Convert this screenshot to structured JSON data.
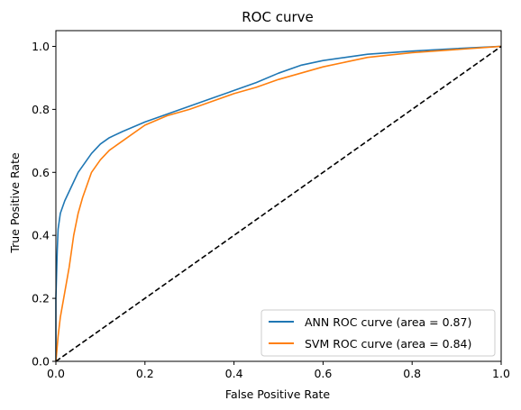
{
  "chart_data": {
    "type": "line",
    "title": "ROC curve",
    "xlabel": "False Positive Rate",
    "ylabel": "True Positive Rate",
    "xlim": [
      0.0,
      1.0
    ],
    "ylim": [
      0.0,
      1.05
    ],
    "xticks": [
      "0.0",
      "0.2",
      "0.4",
      "0.6",
      "0.8",
      "1.0"
    ],
    "yticks": [
      "0.0",
      "0.2",
      "0.4",
      "0.6",
      "0.8",
      "1.0"
    ],
    "grid": false,
    "legend_position": "lower-right",
    "series": [
      {
        "name": "ANN ROC curve (area = 0.87)",
        "color": "#1f77b4",
        "x": [
          0.0,
          0.0,
          0.003,
          0.005,
          0.01,
          0.02,
          0.03,
          0.04,
          0.05,
          0.06,
          0.07,
          0.08,
          0.1,
          0.12,
          0.15,
          0.2,
          0.25,
          0.3,
          0.35,
          0.4,
          0.45,
          0.5,
          0.55,
          0.6,
          0.65,
          0.7,
          0.8,
          0.9,
          1.0
        ],
        "y": [
          0.0,
          0.2,
          0.35,
          0.42,
          0.47,
          0.51,
          0.54,
          0.57,
          0.6,
          0.62,
          0.64,
          0.66,
          0.69,
          0.71,
          0.73,
          0.76,
          0.785,
          0.81,
          0.835,
          0.86,
          0.885,
          0.915,
          0.94,
          0.955,
          0.965,
          0.975,
          0.985,
          0.993,
          1.0
        ]
      },
      {
        "name": "SVM ROC curve (area = 0.84)",
        "color": "#ff7f0e",
        "x": [
          0.0,
          0.005,
          0.01,
          0.02,
          0.03,
          0.04,
          0.05,
          0.06,
          0.07,
          0.08,
          0.1,
          0.12,
          0.15,
          0.2,
          0.25,
          0.3,
          0.35,
          0.4,
          0.45,
          0.5,
          0.55,
          0.6,
          0.65,
          0.7,
          0.8,
          0.9,
          1.0
        ],
        "y": [
          0.0,
          0.08,
          0.14,
          0.22,
          0.3,
          0.4,
          0.47,
          0.52,
          0.56,
          0.6,
          0.64,
          0.67,
          0.7,
          0.75,
          0.78,
          0.8,
          0.825,
          0.85,
          0.87,
          0.895,
          0.915,
          0.935,
          0.95,
          0.965,
          0.98,
          0.99,
          1.0
        ]
      },
      {
        "name": "",
        "color": "#000000",
        "dashed": true,
        "x": [
          0.0,
          1.0
        ],
        "y": [
          0.0,
          1.0
        ]
      }
    ]
  }
}
